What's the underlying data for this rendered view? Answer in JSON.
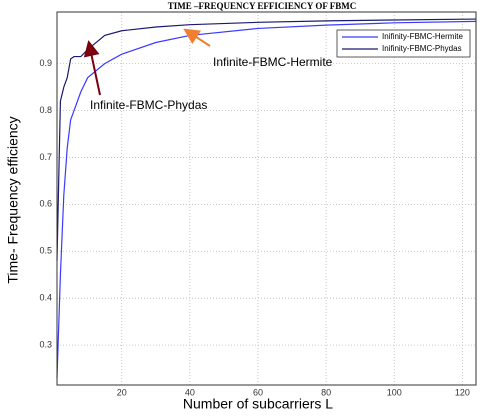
{
  "chart_data": {
    "type": "line",
    "title": "TIME –FREQUENCY EFFICIENCY OF FBMC",
    "x_label": "Number of subcarriers L",
    "y_label": "Time- Frequency efficiency",
    "x": [
      1,
      2,
      3,
      4,
      5,
      6,
      8,
      10,
      15,
      20,
      30,
      40,
      60,
      80,
      100,
      124
    ],
    "series": [
      {
        "name": "Inifinity-FBMC-Hermite",
        "color": "#3a3aff",
        "values": [
          0.23,
          0.45,
          0.62,
          0.72,
          0.78,
          0.8,
          0.84,
          0.87,
          0.9,
          0.92,
          0.945,
          0.96,
          0.975,
          0.982,
          0.987,
          0.99
        ]
      },
      {
        "name": "Inifinity-FBMC-Phydas",
        "color": "#1a1a6e",
        "values": [
          0.48,
          0.82,
          0.85,
          0.87,
          0.91,
          0.915,
          0.915,
          0.93,
          0.96,
          0.97,
          0.978,
          0.983,
          0.988,
          0.991,
          0.993,
          0.995
        ]
      }
    ],
    "annotations": [
      "Infinite-FBMC-Hermite",
      "Infinite-FBMC-Phydas"
    ],
    "xlim": [
      1,
      124
    ],
    "ylim": [
      0.215,
      1.01
    ],
    "xticks": [
      20,
      40,
      60,
      80,
      100,
      120
    ],
    "yticks": [
      0.3,
      0.4,
      0.5,
      0.6,
      0.7,
      0.8,
      0.9
    ],
    "grid": true,
    "legend": "upper right"
  }
}
